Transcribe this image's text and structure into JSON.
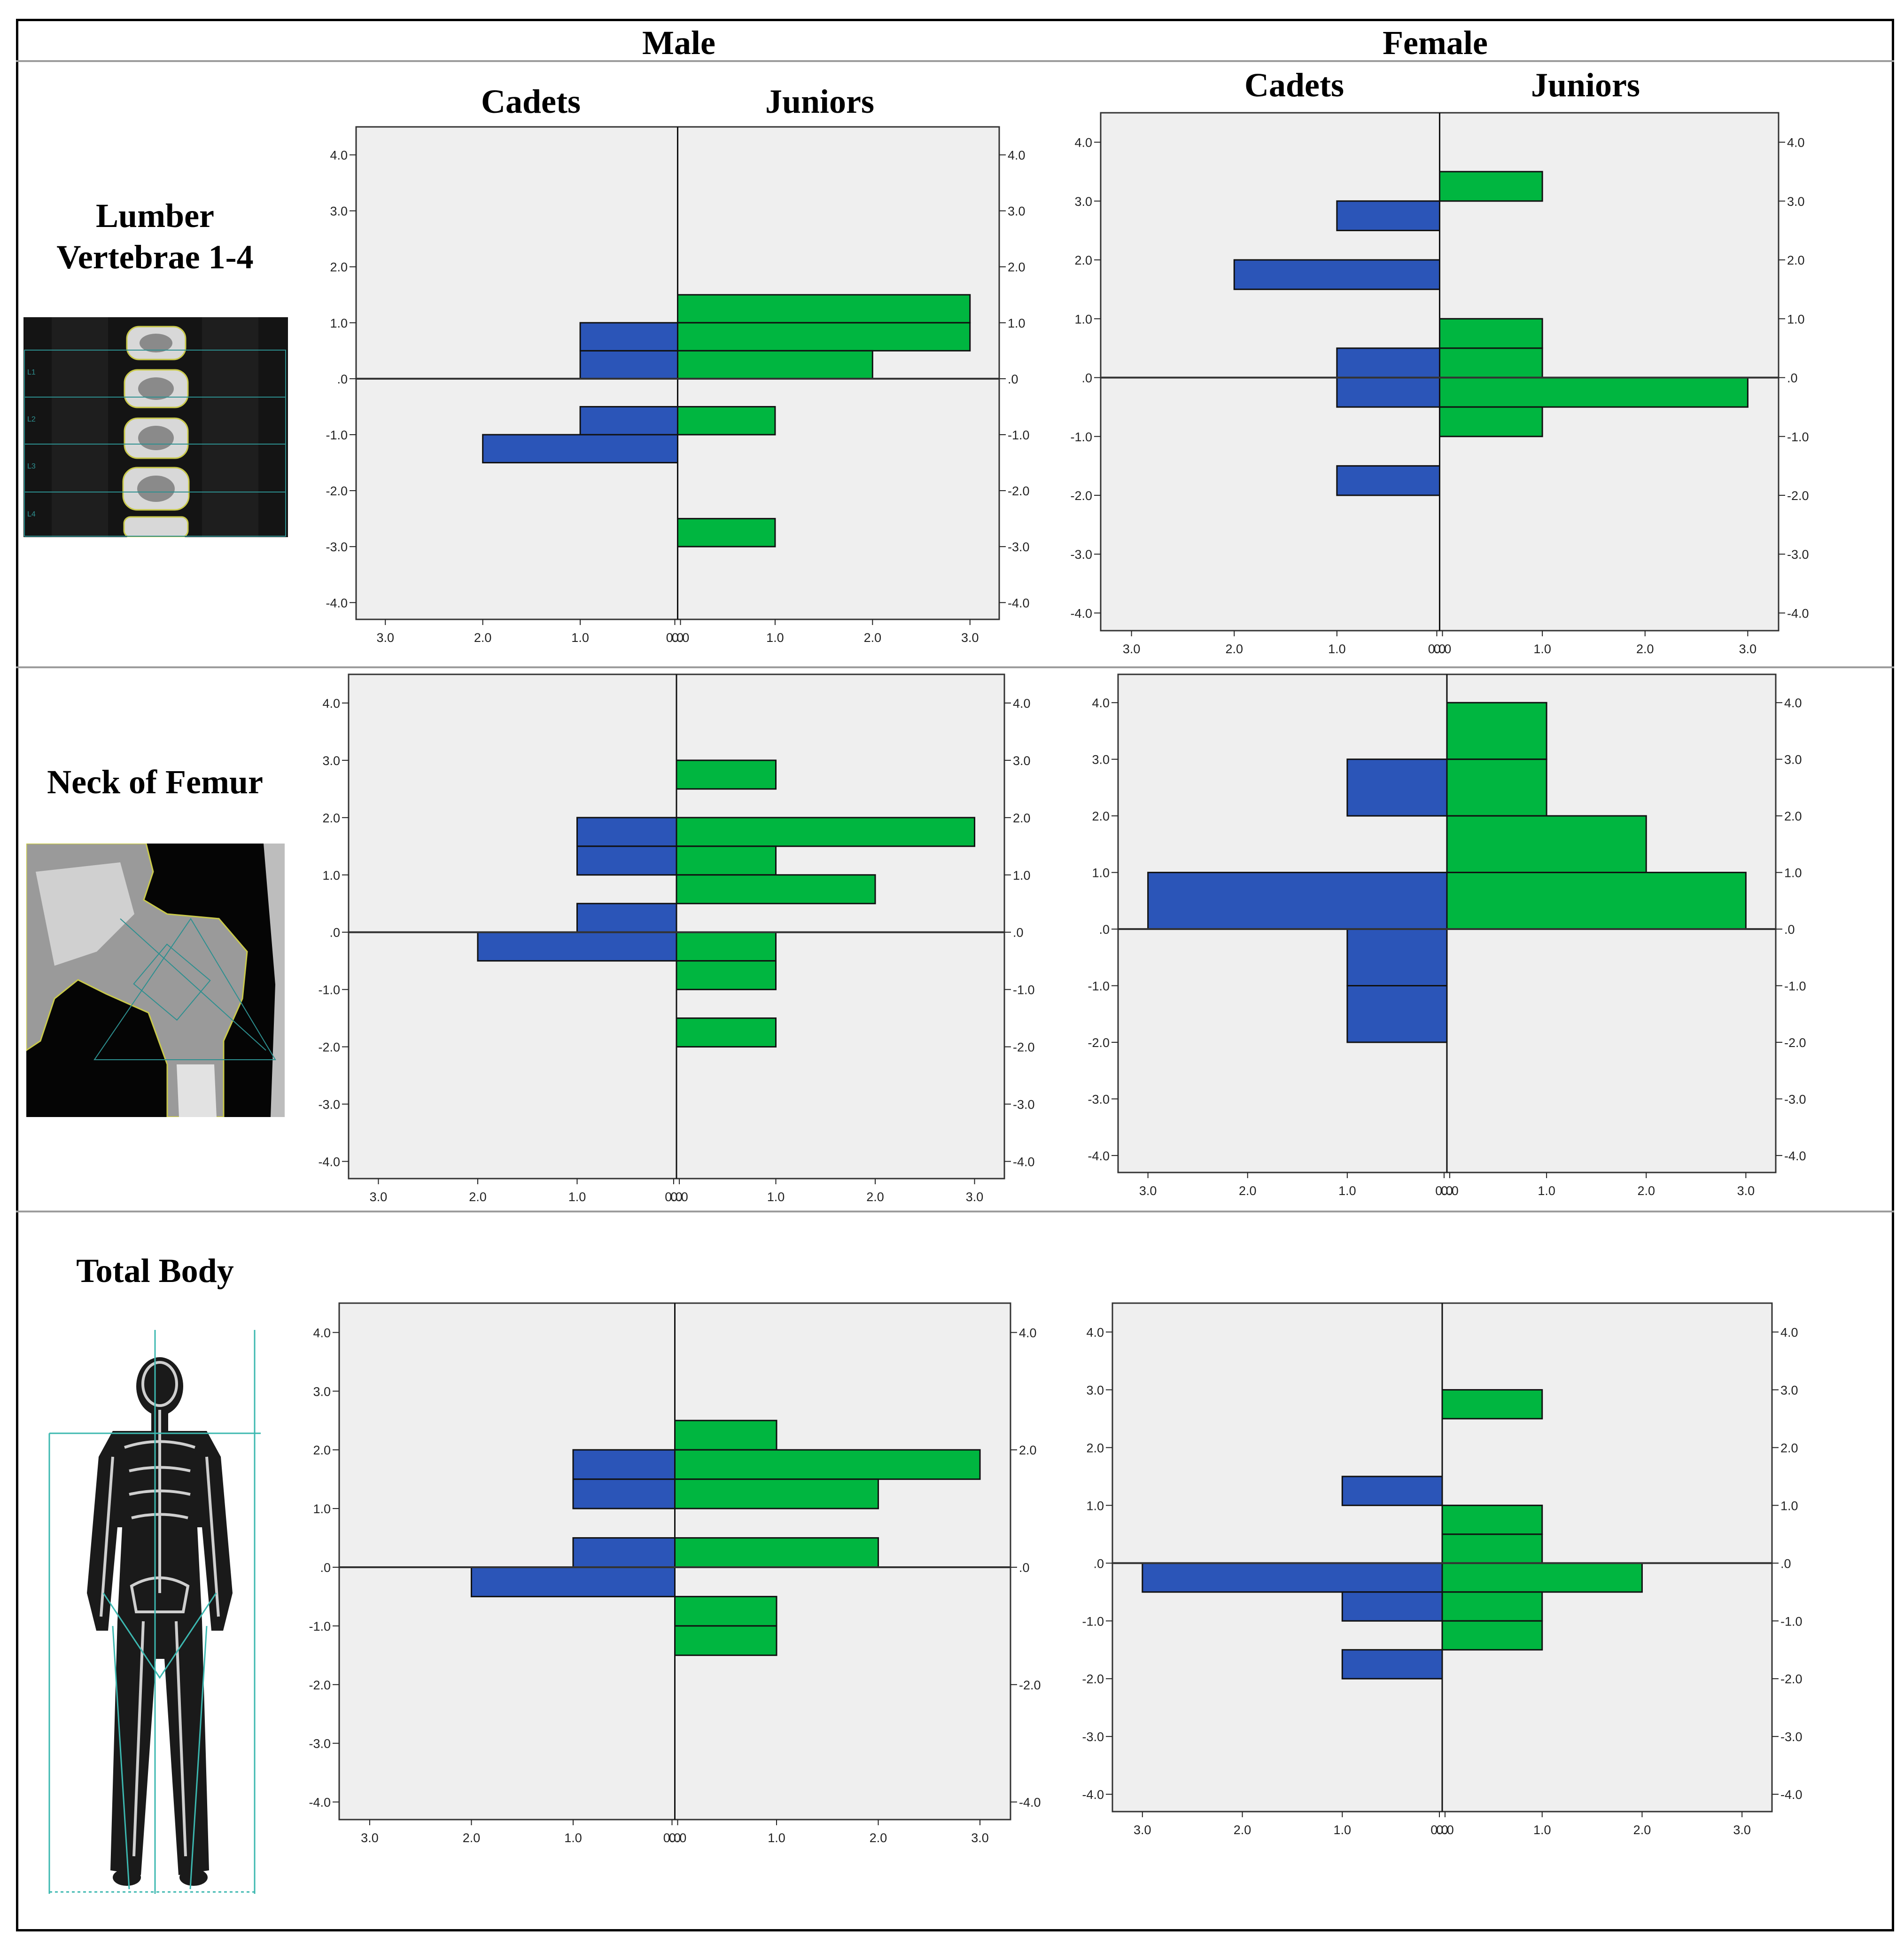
{
  "columns": {
    "male": "Male",
    "female": "Female"
  },
  "groups": {
    "left": "Cadets",
    "right": "Juniors"
  },
  "rows": {
    "lumbar": {
      "line1": "Lumber",
      "line2": "Vertebrae 1-4"
    },
    "femur": "Neck of Femur",
    "total": "Total Body"
  },
  "thumbnails": {
    "lumbar": {
      "labels": [
        "L1",
        "L2",
        "L3",
        "L4"
      ]
    }
  },
  "colors": {
    "cadets": "#2b55b8",
    "juniors": "#00b640",
    "plot_bg": "#efefef"
  },
  "chart_data": [
    {
      "type": "bar",
      "orientation": "horizontal",
      "panel": "Male - Lumber Vertebrae 1-4",
      "bin_width": 0.5,
      "ylim": [
        -4.3,
        4.5
      ],
      "xlim": [
        0,
        3.3
      ],
      "y_ticks": [
        "4.0",
        "3.0",
        "2.0",
        "1.0",
        ".0",
        "-1.0",
        "-2.0",
        "-3.0",
        "-4.0"
      ],
      "x_ticks": [
        "3.0",
        "2.0",
        "1.0",
        "0.0",
        "0.0",
        "1.0",
        "2.0",
        "3.0"
      ],
      "series": [
        {
          "name": "Cadets",
          "side": "left",
          "bins": [
            [
              0.0,
              1
            ],
            [
              0.5,
              1
            ],
            [
              -1.5,
              2
            ],
            [
              -1.0,
              1
            ]
          ]
        },
        {
          "name": "Juniors",
          "side": "right",
          "bins": [
            [
              1.0,
              3
            ],
            [
              0.5,
              3
            ],
            [
              0.0,
              2
            ],
            [
              -1.0,
              1
            ],
            [
              -3.0,
              1
            ]
          ]
        }
      ]
    },
    {
      "type": "bar",
      "orientation": "horizontal",
      "panel": "Female - Lumber Vertebrae 1-4",
      "bin_width": 0.5,
      "ylim": [
        -4.3,
        4.5
      ],
      "xlim": [
        0,
        3.3
      ],
      "y_ticks": [
        "4.0",
        "3.0",
        "2.0",
        "1.0",
        ".0",
        "-1.0",
        "-2.0",
        "-3.0",
        "-4.0"
      ],
      "x_ticks": [
        "3.0",
        "2.0",
        "1.0",
        "0.0",
        "0.0",
        "1.0",
        "2.0",
        "3.0"
      ],
      "series": [
        {
          "name": "Cadets",
          "side": "left",
          "bins": [
            [
              2.5,
              1
            ],
            [
              1.5,
              2
            ],
            [
              0.0,
              1
            ],
            [
              -0.5,
              1
            ],
            [
              -2.0,
              1
            ]
          ]
        },
        {
          "name": "Juniors",
          "side": "right",
          "bins": [
            [
              3.0,
              1
            ],
            [
              0.5,
              1
            ],
            [
              0.0,
              1
            ],
            [
              -0.5,
              3
            ],
            [
              -1.0,
              1
            ]
          ]
        }
      ]
    },
    {
      "type": "bar",
      "orientation": "horizontal",
      "panel": "Male - Neck of Femur",
      "bin_width": 0.5,
      "ylim": [
        -4.3,
        4.5
      ],
      "xlim": [
        0,
        3.3
      ],
      "y_ticks": [
        "4.0",
        "3.0",
        "2.0",
        "1.0",
        ".0",
        "-1.0",
        "-2.0",
        "-3.0",
        "-4.0"
      ],
      "x_ticks": [
        "3.0",
        "2.0",
        "1.0",
        "0.0",
        "0.0",
        "1.0",
        "2.0",
        "3.0"
      ],
      "series": [
        {
          "name": "Cadets",
          "side": "left",
          "bins": [
            [
              1.5,
              1
            ],
            [
              1.0,
              1
            ],
            [
              0.0,
              1
            ],
            [
              -0.5,
              2
            ]
          ]
        },
        {
          "name": "Juniors",
          "side": "right",
          "bins": [
            [
              2.5,
              1
            ],
            [
              1.5,
              3
            ],
            [
              1.0,
              1
            ],
            [
              0.5,
              2
            ],
            [
              -0.5,
              1
            ],
            [
              -1.0,
              1
            ],
            [
              -2.0,
              1
            ]
          ]
        }
      ]
    },
    {
      "type": "bar",
      "orientation": "horizontal",
      "panel": "Female - Neck of Femur",
      "bin_width": 1.0,
      "ylim": [
        -4.3,
        4.5
      ],
      "xlim": [
        0,
        3.3
      ],
      "y_ticks": [
        "4.0",
        "3.0",
        "2.0",
        "1.0",
        ".0",
        "-1.0",
        "-2.0",
        "-3.0",
        "-4.0"
      ],
      "x_ticks": [
        "3.0",
        "2.0",
        "1.0",
        "0.0",
        "0.0",
        "1.0",
        "2.0",
        "3.0"
      ],
      "series": [
        {
          "name": "Cadets",
          "side": "left",
          "bins": [
            [
              2.0,
              1
            ],
            [
              0.0,
              3
            ],
            [
              -1.0,
              1
            ],
            [
              -2.0,
              1
            ]
          ]
        },
        {
          "name": "Juniors",
          "side": "right",
          "bins": [
            [
              3.0,
              1
            ],
            [
              2.0,
              1
            ],
            [
              1.0,
              2
            ],
            [
              0.0,
              3
            ]
          ]
        }
      ]
    },
    {
      "type": "bar",
      "orientation": "horizontal",
      "panel": "Male - Total Body",
      "bin_width": 0.5,
      "ylim": [
        -4.3,
        4.5
      ],
      "xlim": [
        0,
        3.3
      ],
      "y_ticks": [
        "4.0",
        "3.0",
        "2.0",
        "1.0",
        ".0",
        "-1.0",
        "-2.0",
        "-3.0",
        "-4.0"
      ],
      "y_ticks_right": [
        "4.0",
        "2.0",
        ".0",
        "-2.0",
        "-4.0"
      ],
      "x_ticks": [
        "3.0",
        "2.0",
        "1.0",
        "0.0",
        "0.0",
        "1.0",
        "2.0",
        "3.0"
      ],
      "series": [
        {
          "name": "Cadets",
          "side": "left",
          "bins": [
            [
              1.5,
              1
            ],
            [
              1.0,
              1
            ],
            [
              0.0,
              1
            ],
            [
              -0.5,
              2
            ]
          ]
        },
        {
          "name": "Juniors",
          "side": "right",
          "bins": [
            [
              2.0,
              1
            ],
            [
              1.5,
              3
            ],
            [
              1.0,
              2
            ],
            [
              0.0,
              2
            ],
            [
              -1.0,
              1
            ],
            [
              -1.5,
              1
            ]
          ]
        }
      ]
    },
    {
      "type": "bar",
      "orientation": "horizontal",
      "panel": "Female - Total Body",
      "bin_width": 0.5,
      "ylim": [
        -4.3,
        4.5
      ],
      "xlim": [
        0,
        3.3
      ],
      "y_ticks": [
        "4.0",
        "3.0",
        "2.0",
        "1.0",
        ".0",
        "-1.0",
        "-2.0",
        "-3.0",
        "-4.0"
      ],
      "x_ticks": [
        "3.0",
        "2.0",
        "1.0",
        "0.0",
        "0.0",
        "1.0",
        "2.0",
        "3.0"
      ],
      "series": [
        {
          "name": "Cadets",
          "side": "left",
          "bins": [
            [
              1.0,
              1
            ],
            [
              -0.5,
              3
            ],
            [
              -1.0,
              1
            ],
            [
              -2.0,
              1
            ]
          ]
        },
        {
          "name": "Juniors",
          "side": "right",
          "bins": [
            [
              2.5,
              1
            ],
            [
              0.5,
              1
            ],
            [
              0.0,
              1
            ],
            [
              -0.5,
              2
            ],
            [
              -1.0,
              1
            ],
            [
              -1.5,
              1
            ]
          ]
        }
      ]
    }
  ]
}
